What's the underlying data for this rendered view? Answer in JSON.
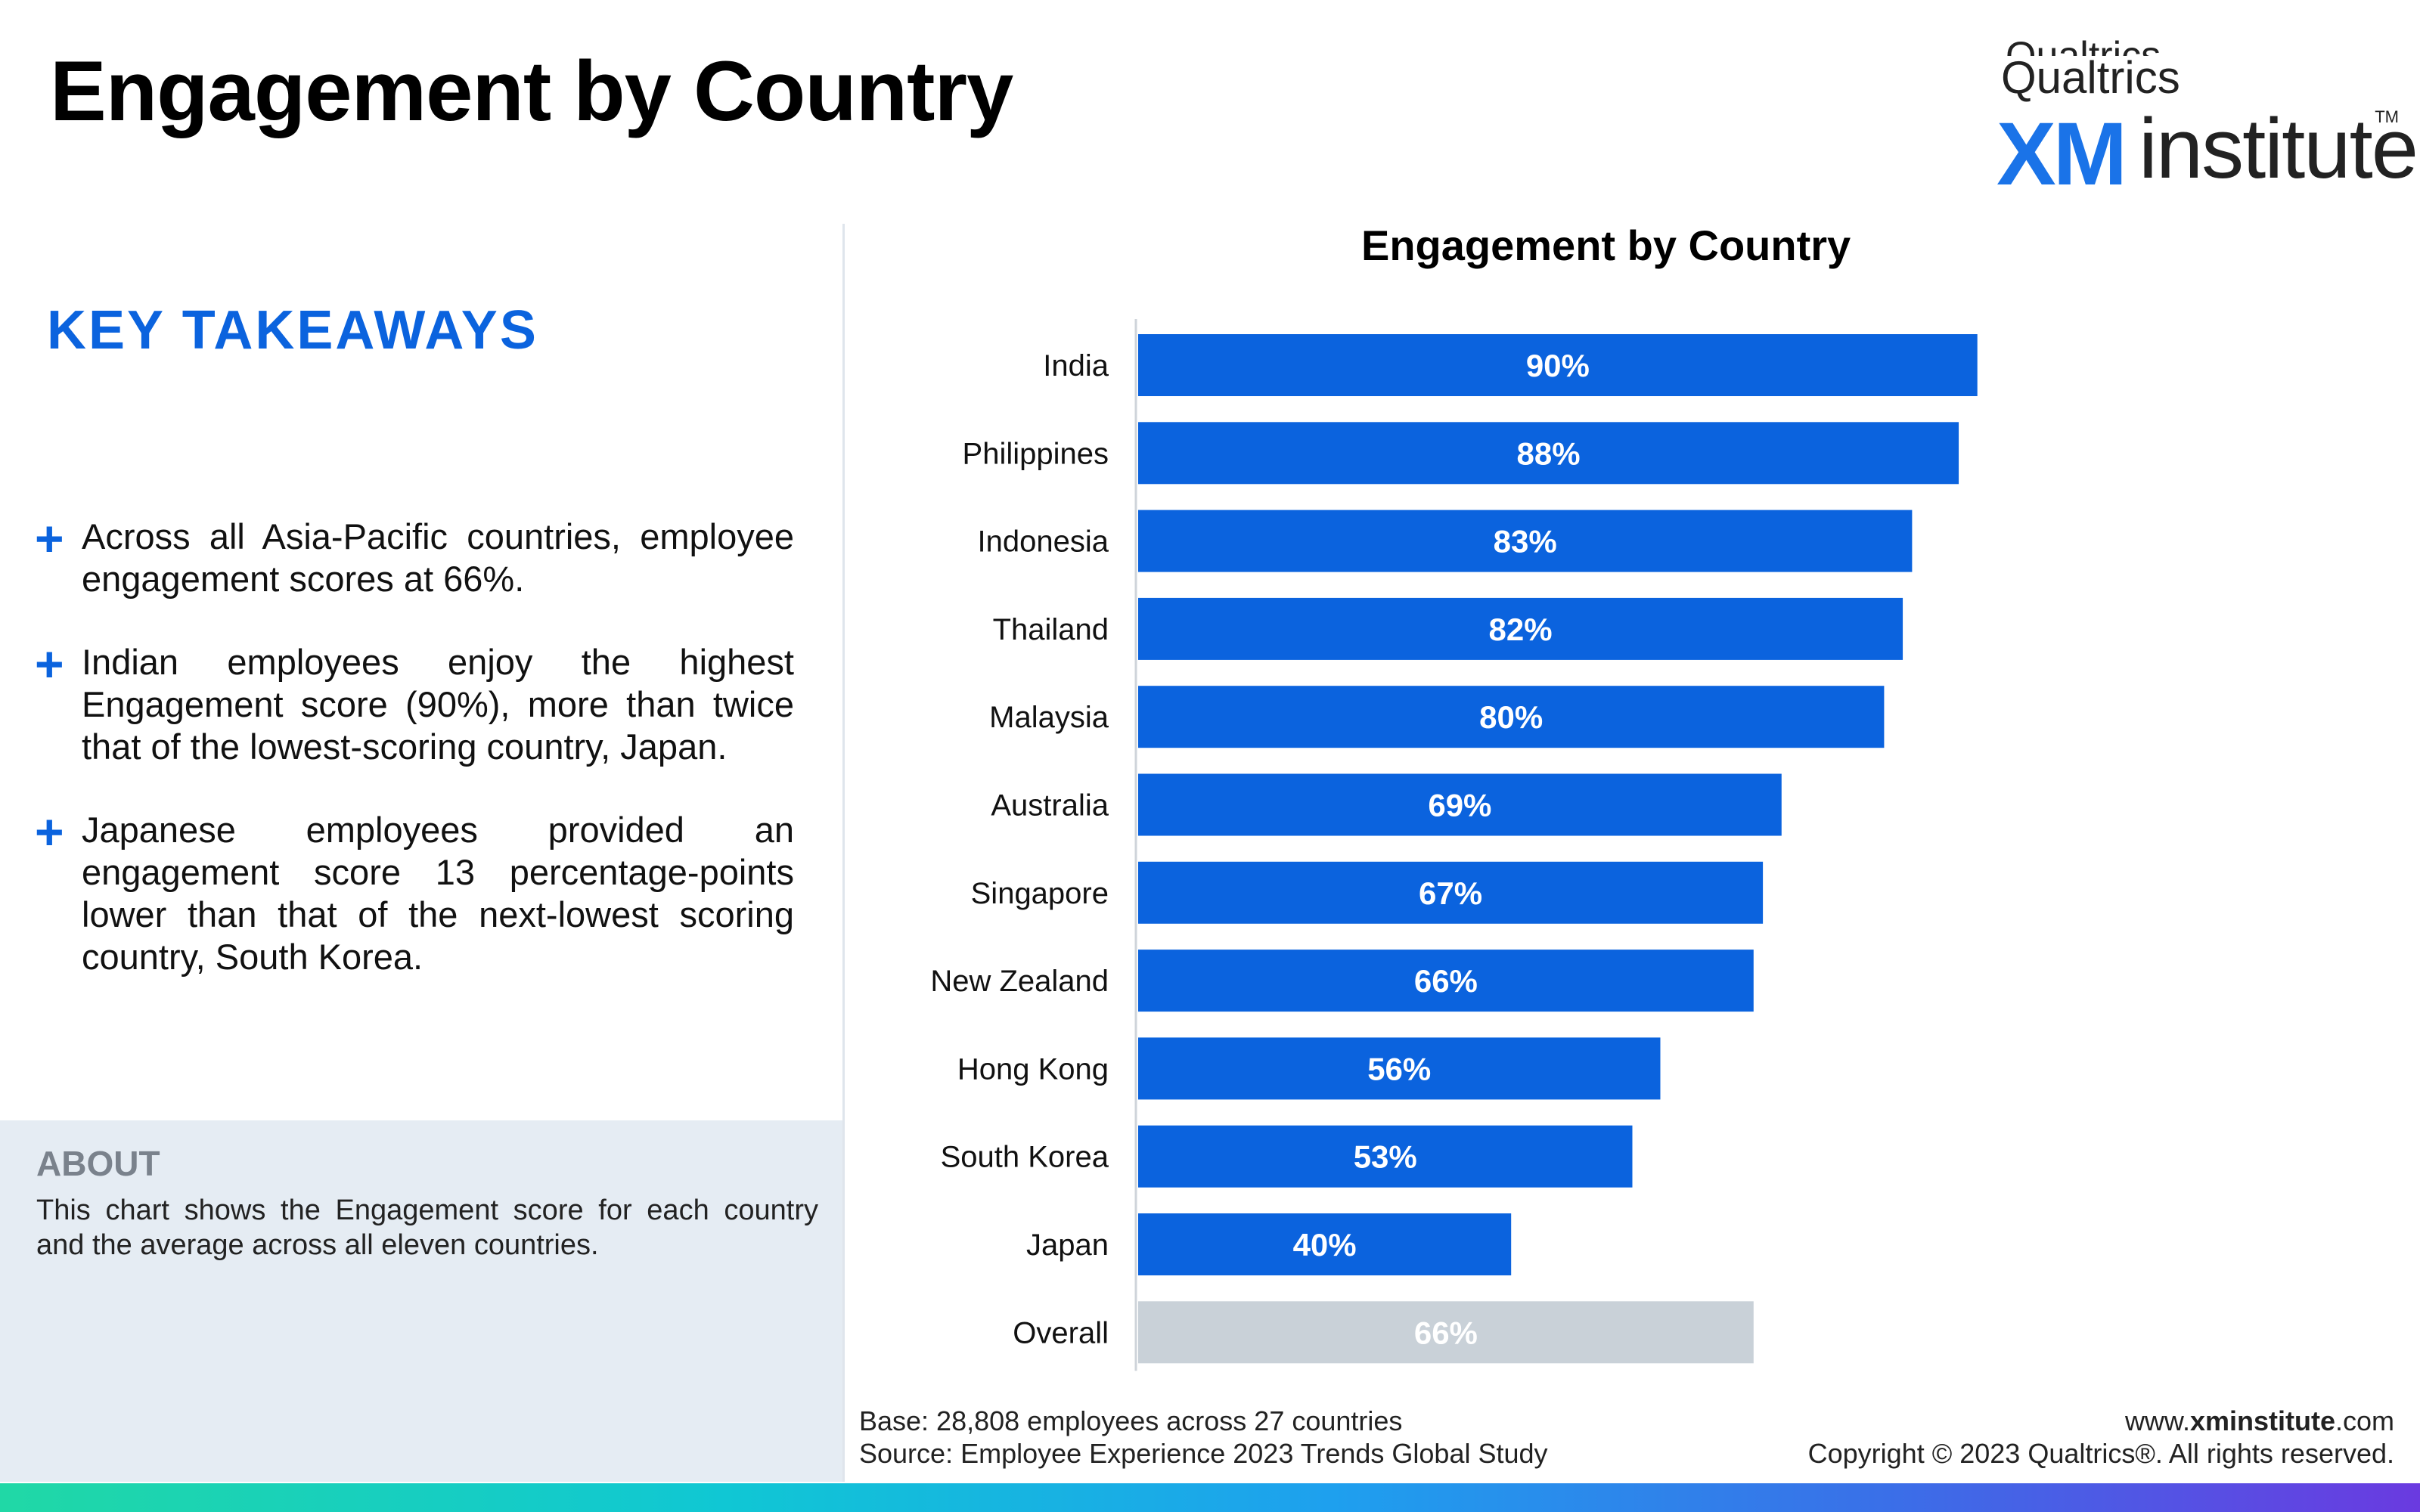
{
  "page": {
    "title": "Engagement by Country"
  },
  "logo": {
    "top_text": "Qualtrics",
    "company": "Qualtrics",
    "xm": "XM",
    "institute": "institute",
    "tm": "TM"
  },
  "takeaways": {
    "heading": "KEY TAKEAWAYS",
    "items": [
      {
        "symbol": "+",
        "text": "Across all Asia-Pacific countries, employee engagement scores at 66%."
      },
      {
        "symbol": "+",
        "text": "Indian employees enjoy the highest Engagement score (90%), more than twice that of the lowest-scoring country, Japan."
      },
      {
        "symbol": "+",
        "text": "Japanese employees provided an engagement score 13 percentage-points lower than that of the next-lowest scoring country, South Korea."
      }
    ]
  },
  "about": {
    "heading": "ABOUT",
    "text": "This chart shows the Engagement score for each country and the average across all eleven countries."
  },
  "footer": {
    "base": "Base: 28,808 employees across 27 countries",
    "source": "Source: Employee Experience 2023 Trends Global Study",
    "url_prefix": "www.",
    "url_bold": "xminstitute",
    "url_suffix": ".com",
    "copyright": "Copyright © 2023 Qualtrics®. All rights reserved."
  },
  "chart_data": {
    "type": "bar",
    "orientation": "horizontal",
    "title": "Engagement by Country",
    "xlabel": "",
    "ylabel": "",
    "xlim": [
      0,
      100
    ],
    "grid": false,
    "categories": [
      "India",
      "Philippines",
      "Indonesia",
      "Thailand",
      "Malaysia",
      "Australia",
      "Singapore",
      "New Zealand",
      "Hong Kong",
      "South Korea",
      "Japan",
      "Overall"
    ],
    "values": [
      90,
      88,
      83,
      82,
      80,
      69,
      67,
      66,
      56,
      53,
      40,
      66
    ],
    "data_labels": [
      "90%",
      "88%",
      "83%",
      "82%",
      "80%",
      "69%",
      "67%",
      "66%",
      "56%",
      "53%",
      "40%",
      "66%"
    ],
    "colors": {
      "bar": "#0b63de",
      "overall_bar": "#c9d1d8",
      "label": "#ffffff",
      "axis": "#cfd4da"
    }
  }
}
